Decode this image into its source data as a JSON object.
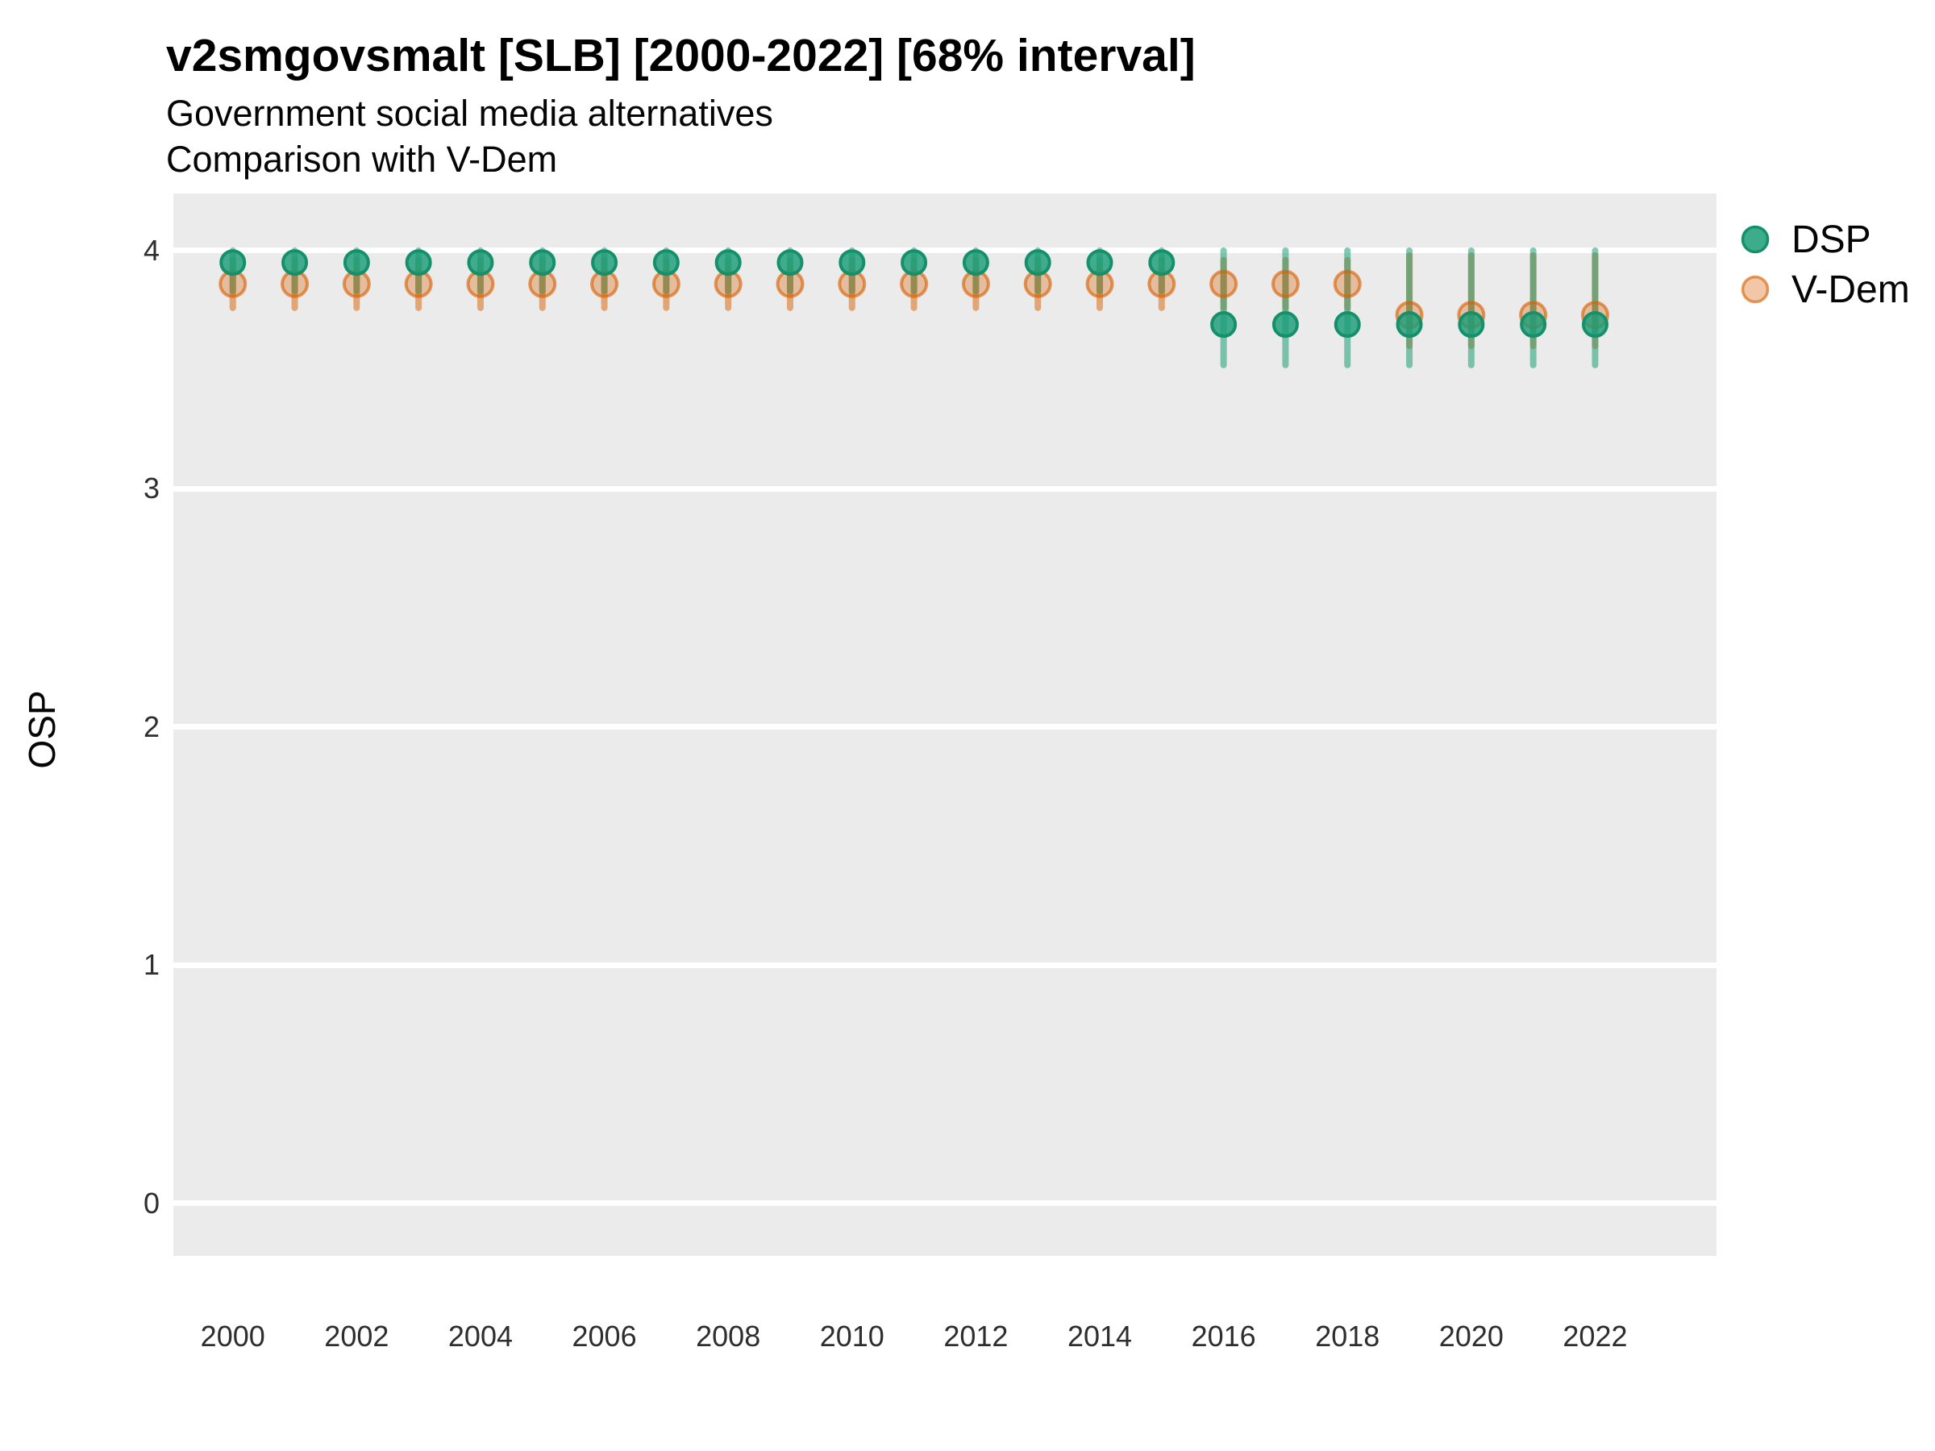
{
  "header": {
    "title": "v2smgovsmalt [SLB] [2000-2022] [68% interval]",
    "subtitle1": "Government social media alternatives",
    "subtitle2": "Comparison with V-Dem"
  },
  "colors": {
    "dsp_green": "#1B9E77",
    "dsp_green_stroke": "#15906B",
    "vdem_orange": "#D95F02",
    "panel_background": "#EBEBEB",
    "gridline": "#FFFFFF",
    "text": "#050505",
    "tick_text": "#2E2E2E"
  },
  "chart_data": {
    "type": "scatter",
    "title": "v2smgovsmalt [SLB] [2000-2022] [68% interval]",
    "subtitle": [
      "Government social media alternatives",
      "Comparison with V-Dem"
    ],
    "ylabel": "OSP",
    "xlabel": "",
    "interval": "68% interval",
    "grid": "horizontal-major-only",
    "legend_position": "right-top",
    "xlim": [
      1999.04,
      2023.96
    ],
    "ylim": [
      -0.22,
      4.24
    ],
    "y_ticks": [
      0,
      1,
      2,
      3,
      4
    ],
    "x_tick_years": [
      2000,
      2002,
      2004,
      2006,
      2008,
      2010,
      2012,
      2014,
      2016,
      2018,
      2020,
      2022
    ],
    "x": [
      2000,
      2001,
      2002,
      2003,
      2004,
      2005,
      2006,
      2007,
      2008,
      2009,
      2010,
      2011,
      2012,
      2013,
      2014,
      2015,
      2016,
      2017,
      2018,
      2019,
      2020,
      2021,
      2022
    ],
    "series": [
      {
        "name": "DSP",
        "color": "#1B9E77",
        "values": [
          3.95,
          3.95,
          3.95,
          3.95,
          3.95,
          3.95,
          3.95,
          3.95,
          3.95,
          3.95,
          3.95,
          3.95,
          3.95,
          3.95,
          3.95,
          3.95,
          3.69,
          3.69,
          3.69,
          3.69,
          3.69,
          3.69,
          3.69
        ],
        "interval_low": [
          3.83,
          3.83,
          3.83,
          3.83,
          3.83,
          3.83,
          3.83,
          3.83,
          3.83,
          3.83,
          3.83,
          3.83,
          3.83,
          3.83,
          3.83,
          3.83,
          3.52,
          3.52,
          3.52,
          3.52,
          3.52,
          3.52,
          3.52
        ],
        "interval_high": [
          4.0,
          4.0,
          4.0,
          4.0,
          4.0,
          4.0,
          4.0,
          4.0,
          4.0,
          4.0,
          4.0,
          4.0,
          4.0,
          4.0,
          4.0,
          4.0,
          4.0,
          4.0,
          4.0,
          4.0,
          4.0,
          4.0,
          4.0
        ]
      },
      {
        "name": "V-Dem",
        "color": "#D95F02",
        "values": [
          3.86,
          3.86,
          3.86,
          3.86,
          3.86,
          3.86,
          3.86,
          3.86,
          3.86,
          3.86,
          3.86,
          3.86,
          3.86,
          3.86,
          3.86,
          3.86,
          3.86,
          3.86,
          3.86,
          3.73,
          3.73,
          3.73,
          3.73
        ],
        "interval_low": [
          3.76,
          3.76,
          3.76,
          3.76,
          3.76,
          3.76,
          3.76,
          3.76,
          3.76,
          3.76,
          3.76,
          3.76,
          3.76,
          3.76,
          3.76,
          3.76,
          3.76,
          3.76,
          3.76,
          3.6,
          3.6,
          3.6,
          3.6
        ],
        "interval_high": [
          3.96,
          3.96,
          3.96,
          3.96,
          3.96,
          3.96,
          3.96,
          3.96,
          3.96,
          3.96,
          3.96,
          3.96,
          3.96,
          3.96,
          3.96,
          3.96,
          3.96,
          3.96,
          3.96,
          3.98,
          3.98,
          3.98,
          3.98
        ]
      }
    ]
  }
}
